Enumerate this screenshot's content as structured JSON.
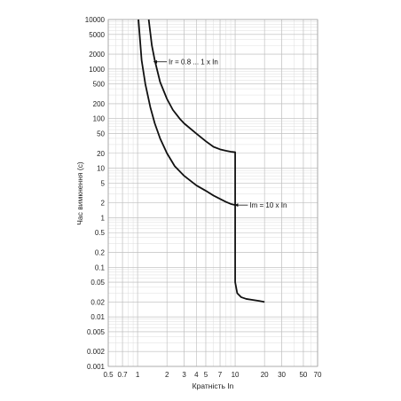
{
  "chart_data": {
    "type": "line",
    "title": "",
    "xlabel": "Кратність In",
    "ylabel": "Час вимкнення (с)",
    "x_scale": "log",
    "y_scale": "log",
    "xlim": [
      0.5,
      70
    ],
    "ylim": [
      0.001,
      10000
    ],
    "grid": true,
    "x_ticks": [
      "0.5",
      "0.7",
      "1",
      "2",
      "3",
      "4",
      "5",
      "7",
      "10",
      "20",
      "30",
      "50",
      "70"
    ],
    "y_ticks": [
      "0.001",
      "0.002",
      "0.005",
      "0.01",
      "0.02",
      "0.05",
      "0.1",
      "0.2",
      "0.5",
      "1",
      "2",
      "5",
      "10",
      "20",
      "50",
      "100",
      "200",
      "500",
      "1000",
      "2000",
      "5000",
      "10000"
    ],
    "series": [
      {
        "name": "",
        "x": [
          1.02,
          1.1,
          1.2,
          1.35,
          1.5,
          1.7,
          2.0,
          2.4,
          3.0,
          4.0,
          5.0,
          6.0,
          7.0,
          8.0,
          9.0,
          10.0
        ],
        "y": [
          10000,
          1500,
          500,
          170,
          80,
          40,
          20,
          11,
          7,
          4.5,
          3.5,
          2.8,
          2.4,
          2.1,
          1.9,
          1.8
        ]
      },
      {
        "name": "",
        "x": [
          1.3,
          1.4,
          1.5,
          1.7,
          2.0,
          2.3,
          2.7,
          3.0,
          4.0,
          5.0,
          6.0,
          7.0,
          8.0,
          9.0,
          10.0,
          10.0,
          10.0,
          10.5,
          11.5,
          13.0,
          15.0,
          17.5,
          20.0
        ],
        "y": [
          10000,
          3000,
          1500,
          550,
          250,
          150,
          100,
          80,
          50,
          35,
          27,
          24,
          22.5,
          21.5,
          21,
          1.8,
          0.05,
          0.03,
          0.025,
          0.023,
          0.022,
          0.021,
          0.02
        ]
      }
    ],
    "annotations": [
      {
        "text": "Ir = 0.8 ... 1 x In",
        "x": 1.55,
        "y": 1400
      },
      {
        "text": "Im = 10 x In",
        "x": 10.5,
        "y": 1.8
      }
    ]
  }
}
